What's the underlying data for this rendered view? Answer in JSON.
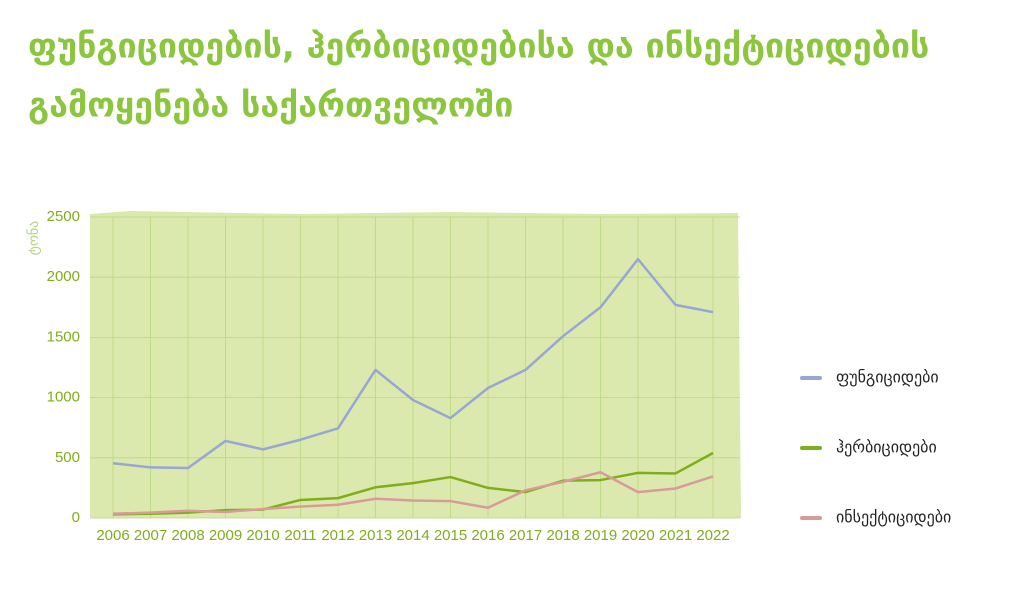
{
  "chart_data": {
    "type": "line",
    "title": [
      "ფუნგიციდების, ჰერბიციდებისა და ინსექტიციდების",
      "გამოყენება საქართველოში"
    ],
    "y_label": "ტონა",
    "categories": [
      "2006",
      "2007",
      "2008",
      "2009",
      "2010",
      "2011",
      "2012",
      "2013",
      "2014",
      "2015",
      "2016",
      "2017",
      "2018",
      "2019",
      "2020",
      "2021",
      "2022"
    ],
    "series": [
      {
        "name": "ფუნგიციდები",
        "color": "#97a6d2",
        "values": [
          455,
          420,
          415,
          640,
          570,
          650,
          745,
          1230,
          980,
          830,
          1080,
          1230,
          1510,
          1750,
          2150,
          1770,
          1710
        ]
      },
      {
        "name": "ჰერბიციდები",
        "color": "#7fae1a",
        "values": [
          30,
          35,
          45,
          65,
          70,
          150,
          165,
          255,
          290,
          340,
          250,
          215,
          310,
          315,
          375,
          370,
          540
        ]
      },
      {
        "name": "ინსექტიციდები",
        "color": "#d99a9a",
        "values": [
          35,
          45,
          60,
          50,
          75,
          95,
          110,
          160,
          145,
          140,
          85,
          230,
          300,
          380,
          215,
          245,
          345
        ]
      }
    ],
    "ylim": [
      0,
      2500
    ],
    "yticks": [
      0,
      500,
      1000,
      1500,
      2000,
      2500
    ],
    "grid": true,
    "legend": "right"
  }
}
